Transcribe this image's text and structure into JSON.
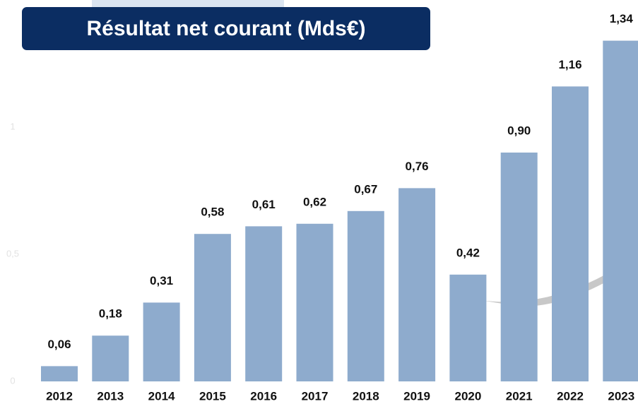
{
  "chart_data": {
    "type": "bar",
    "title": "Résultat net courant (Mds€)",
    "categories": [
      "2012",
      "2013",
      "2014",
      "2015",
      "2016",
      "2017",
      "2018",
      "2019",
      "2020",
      "2021",
      "2022",
      "2023"
    ],
    "values": [
      0.06,
      0.18,
      0.31,
      0.58,
      0.61,
      0.62,
      0.67,
      0.76,
      0.42,
      0.9,
      1.16,
      1.34
    ],
    "value_labels": [
      "0,06",
      "0,18",
      "0,31",
      "0,58",
      "0,61",
      "0,62",
      "0,67",
      "0,76",
      "0,42",
      "0,90",
      "1,16",
      "1,34"
    ],
    "color": "#8eabcd",
    "ylim": [
      0,
      1.5
    ],
    "yticks": [
      0,
      {
        "value": 0.5,
        "label": "0,5"
      },
      1
    ],
    "grid": false
  }
}
